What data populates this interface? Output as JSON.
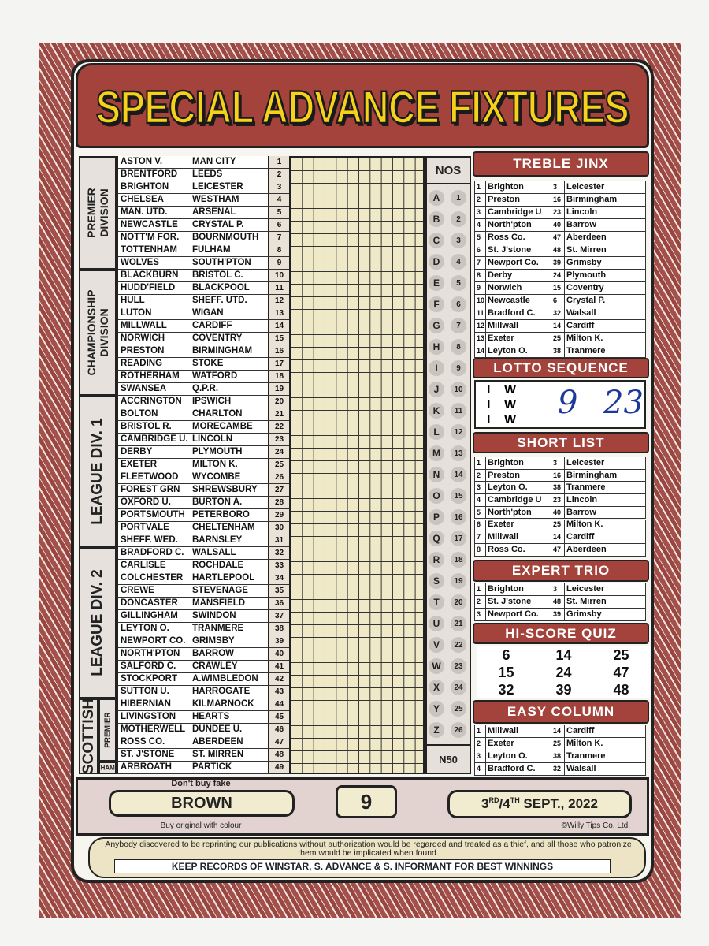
{
  "title": "SPECIAL ADVANCE FIXTURES",
  "fixtures": {
    "divisions": [
      {
        "label": [
          "PREMIER",
          "DIVISION"
        ],
        "fixtures": [
          {
            "home": "ASTON V.",
            "away": "MAN CITY",
            "no": 1
          },
          {
            "home": "BRENTFORD",
            "away": "LEEDS",
            "no": 2
          },
          {
            "home": "BRIGHTON",
            "away": "LEICESTER",
            "no": 3
          },
          {
            "home": "CHELSEA",
            "away": "WESTHAM",
            "no": 4
          },
          {
            "home": "MAN. UTD.",
            "away": "ARSENAL",
            "no": 5
          },
          {
            "home": "NEWCASTLE",
            "away": "CRYSTAL P.",
            "no": 6
          },
          {
            "home": "NOTT'M FOR.",
            "away": "BOURNMOUTH",
            "no": 7
          },
          {
            "home": "TOTTENHAM",
            "away": "FULHAM",
            "no": 8
          },
          {
            "home": "WOLVES",
            "away": "SOUTH'PTON",
            "no": 9
          }
        ]
      },
      {
        "label": [
          "CHAMPIONSHIP",
          "DIVISION"
        ],
        "fixtures": [
          {
            "home": "BLACKBURN",
            "away": "BRISTOL C.",
            "no": 10
          },
          {
            "home": "HUDD'FIELD",
            "away": "BLACKPOOL",
            "no": 11
          },
          {
            "home": "HULL",
            "away": "SHEFF. UTD.",
            "no": 12
          },
          {
            "home": "LUTON",
            "away": "WIGAN",
            "no": 13
          },
          {
            "home": "MILLWALL",
            "away": "CARDIFF",
            "no": 14
          },
          {
            "home": "NORWICH",
            "away": "COVENTRY",
            "no": 15
          },
          {
            "home": "PRESTON",
            "away": "BIRMINGHAM",
            "no": 16
          },
          {
            "home": "READING",
            "away": "STOKE",
            "no": 17
          },
          {
            "home": "ROTHERHAM",
            "away": "WATFORD",
            "no": 18
          },
          {
            "home": "SWANSEA",
            "away": "Q.P.R.",
            "no": 19
          }
        ]
      },
      {
        "label": [
          "LEAGUE DIV. 1"
        ],
        "fixtures": [
          {
            "home": "ACCRINGTON",
            "away": "IPSWICH",
            "no": 20
          },
          {
            "home": "BOLTON",
            "away": "CHARLTON",
            "no": 21
          },
          {
            "home": "BRISTOL R.",
            "away": "MORECAMBE",
            "no": 22
          },
          {
            "home": "CAMBRIDGE U.",
            "away": "LINCOLN",
            "no": 23
          },
          {
            "home": "DERBY",
            "away": "PLYMOUTH",
            "no": 24
          },
          {
            "home": "EXETER",
            "away": "MILTON K.",
            "no": 25
          },
          {
            "home": "FLEETWOOD",
            "away": "WYCOMBE",
            "no": 26
          },
          {
            "home": "FOREST GRN",
            "away": "SHREWSBURY",
            "no": 27
          },
          {
            "home": "OXFORD U.",
            "away": "BURTON A.",
            "no": 28
          },
          {
            "home": "PORTSMOUTH",
            "away": "PETERBORO",
            "no": 29
          },
          {
            "home": "PORTVALE",
            "away": "CHELTENHAM",
            "no": 30
          },
          {
            "home": "SHEFF. WED.",
            "away": "BARNSLEY",
            "no": 31
          }
        ]
      },
      {
        "label": [
          "LEAGUE DIV. 2"
        ],
        "fixtures": [
          {
            "home": "BRADFORD C.",
            "away": "WALSALL",
            "no": 32
          },
          {
            "home": "CARLISLE",
            "away": "ROCHDALE",
            "no": 33
          },
          {
            "home": "COLCHESTER",
            "away": "HARTLEPOOL",
            "no": 34
          },
          {
            "home": "CREWE",
            "away": "STEVENAGE",
            "no": 35
          },
          {
            "home": "DONCASTER",
            "away": "MANSFIELD",
            "no": 36
          },
          {
            "home": "GILLINGHAM",
            "away": "SWINDON",
            "no": 37
          },
          {
            "home": "LEYTON O.",
            "away": "TRANMERE",
            "no": 38
          },
          {
            "home": "NEWPORT CO.",
            "away": "GRIMSBY",
            "no": 39
          },
          {
            "home": "NORTH'PTON",
            "away": "BARROW",
            "no": 40
          },
          {
            "home": "SALFORD C.",
            "away": "CRAWLEY",
            "no": 41
          },
          {
            "home": "STOCKPORT",
            "away": "A.WIMBLEDON",
            "no": 42
          },
          {
            "home": "SUTTON U.",
            "away": "HARROGATE",
            "no": 43
          }
        ]
      },
      {
        "label": [
          "SCOTTISH"
        ],
        "groups": [
          {
            "label": "PREMIER",
            "fixtures": [
              {
                "home": "HIBERNIAN",
                "away": "KILMARNOCK",
                "no": 44
              },
              {
                "home": "LIVINGSTON",
                "away": "HEARTS",
                "no": 45
              },
              {
                "home": "MOTHERWELL",
                "away": "DUNDEE U.",
                "no": 46
              },
              {
                "home": "ROSS CO.",
                "away": "ABERDEEN",
                "no": 47
              },
              {
                "home": "ST. J'STONE",
                "away": "ST. MIRREN",
                "no": 48
              }
            ]
          },
          {
            "label": "CHAMP",
            "fixtures": [
              {
                "home": "ARBROATH",
                "away": "PARTICK",
                "no": 49
              }
            ]
          }
        ]
      }
    ]
  },
  "nos": {
    "header": "NOS",
    "codes": [
      {
        "letter": "A",
        "number": 1
      },
      {
        "letter": "B",
        "number": 2
      },
      {
        "letter": "C",
        "number": 3
      },
      {
        "letter": "D",
        "number": 4
      },
      {
        "letter": "E",
        "number": 5
      },
      {
        "letter": "F",
        "number": 6
      },
      {
        "letter": "G",
        "number": 7
      },
      {
        "letter": "H",
        "number": 8
      },
      {
        "letter": "I",
        "number": 9
      },
      {
        "letter": "J",
        "number": 10
      },
      {
        "letter": "K",
        "number": 11
      },
      {
        "letter": "L",
        "number": 12
      },
      {
        "letter": "M",
        "number": 13
      },
      {
        "letter": "N",
        "number": 14
      },
      {
        "letter": "O",
        "number": 15
      },
      {
        "letter": "P",
        "number": 16
      },
      {
        "letter": "Q",
        "number": 17
      },
      {
        "letter": "R",
        "number": 18
      },
      {
        "letter": "S",
        "number": 19
      },
      {
        "letter": "T",
        "number": 20
      },
      {
        "letter": "U",
        "number": 21
      },
      {
        "letter": "V",
        "number": 22
      },
      {
        "letter": "W",
        "number": 23
      },
      {
        "letter": "X",
        "number": 24
      },
      {
        "letter": "Y",
        "number": 25
      },
      {
        "letter": "Z",
        "number": 26
      }
    ],
    "footer": "N50"
  },
  "treble_jinx": {
    "title": "TREBLE JINX",
    "rows": [
      [
        1,
        "Brighton",
        3,
        "Leicester"
      ],
      [
        2,
        "Preston",
        16,
        "Birmingham"
      ],
      [
        3,
        "Cambridge U",
        23,
        "Lincoln"
      ],
      [
        4,
        "North'pton",
        40,
        "Barrow"
      ],
      [
        5,
        "Ross Co.",
        47,
        "Aberdeen"
      ],
      [
        6,
        "St. J'stone",
        48,
        "St. Mirren"
      ],
      [
        7,
        "Newport Co.",
        39,
        "Grimsby"
      ],
      [
        8,
        "Derby",
        24,
        "Plymouth"
      ],
      [
        9,
        "Norwich",
        15,
        "Coventry"
      ],
      [
        10,
        "Newcastle",
        6,
        "Crystal P."
      ],
      [
        11,
        "Bradford C.",
        32,
        "Walsall"
      ],
      [
        12,
        "Millwall",
        14,
        "Cardiff"
      ],
      [
        13,
        "Exeter",
        25,
        "Milton K."
      ],
      [
        14,
        "Leyton O.",
        38,
        "Tranmere"
      ]
    ]
  },
  "lotto_sequence": {
    "title": "LOTTO SEQUENCE",
    "rows": [
      [
        "I",
        "W"
      ],
      [
        "I",
        "W"
      ],
      [
        "I",
        "W"
      ]
    ],
    "handwritten": [
      "9",
      "23"
    ]
  },
  "short_list": {
    "title": "SHORT LIST",
    "rows": [
      [
        1,
        "Brighton",
        3,
        "Leicester"
      ],
      [
        2,
        "Preston",
        16,
        "Birmingham"
      ],
      [
        3,
        "Leyton O.",
        38,
        "Tranmere"
      ],
      [
        4,
        "Cambridge U",
        23,
        "Lincoln"
      ],
      [
        5,
        "North'pton",
        40,
        "Barrow"
      ],
      [
        6,
        "Exeter",
        25,
        "Milton K."
      ],
      [
        7,
        "Millwall",
        14,
        "Cardiff"
      ],
      [
        8,
        "Ross Co.",
        47,
        "Aberdeen"
      ]
    ]
  },
  "expert_trio": {
    "title": "EXPERT TRIO",
    "rows": [
      [
        1,
        "Brighton",
        3,
        "Leicester"
      ],
      [
        2,
        "St. J'stone",
        48,
        "St. Mirren"
      ],
      [
        3,
        "Newport Co.",
        39,
        "Grimsby"
      ]
    ]
  },
  "hi_score_quiz": {
    "title": "HI-SCORE QUIZ",
    "rows": [
      [
        6,
        14,
        25
      ],
      [
        15,
        24,
        47
      ],
      [
        32,
        39,
        48
      ]
    ]
  },
  "easy_column": {
    "title": "EASY COLUMN",
    "rows": [
      [
        1,
        "Millwall",
        14,
        "Cardiff"
      ],
      [
        2,
        "Exeter",
        25,
        "Milton K."
      ],
      [
        3,
        "Leyton O.",
        38,
        "Tranmere"
      ],
      [
        4,
        "Bradford C.",
        32,
        "Walsall"
      ]
    ]
  },
  "footer": {
    "top_note": "Don't buy fake",
    "colour": "BROWN",
    "bottom_note": "Buy original with colour",
    "week": 9,
    "date": [
      "3",
      "RD",
      "/4",
      "TH",
      " SEPT., 2022"
    ],
    "copyright": "©Willy Tips Co. Ltd."
  },
  "notice": {
    "warning": "Anybody discovered to be reprinting our publications without authorization would be regarded and treated as a thief, and all those who patronize them would be implicated when found.",
    "records": "KEEP RECORDS OF WINSTAR, S. ADVANCE & S. INFORMANT FOR BEST WINNINGS"
  }
}
